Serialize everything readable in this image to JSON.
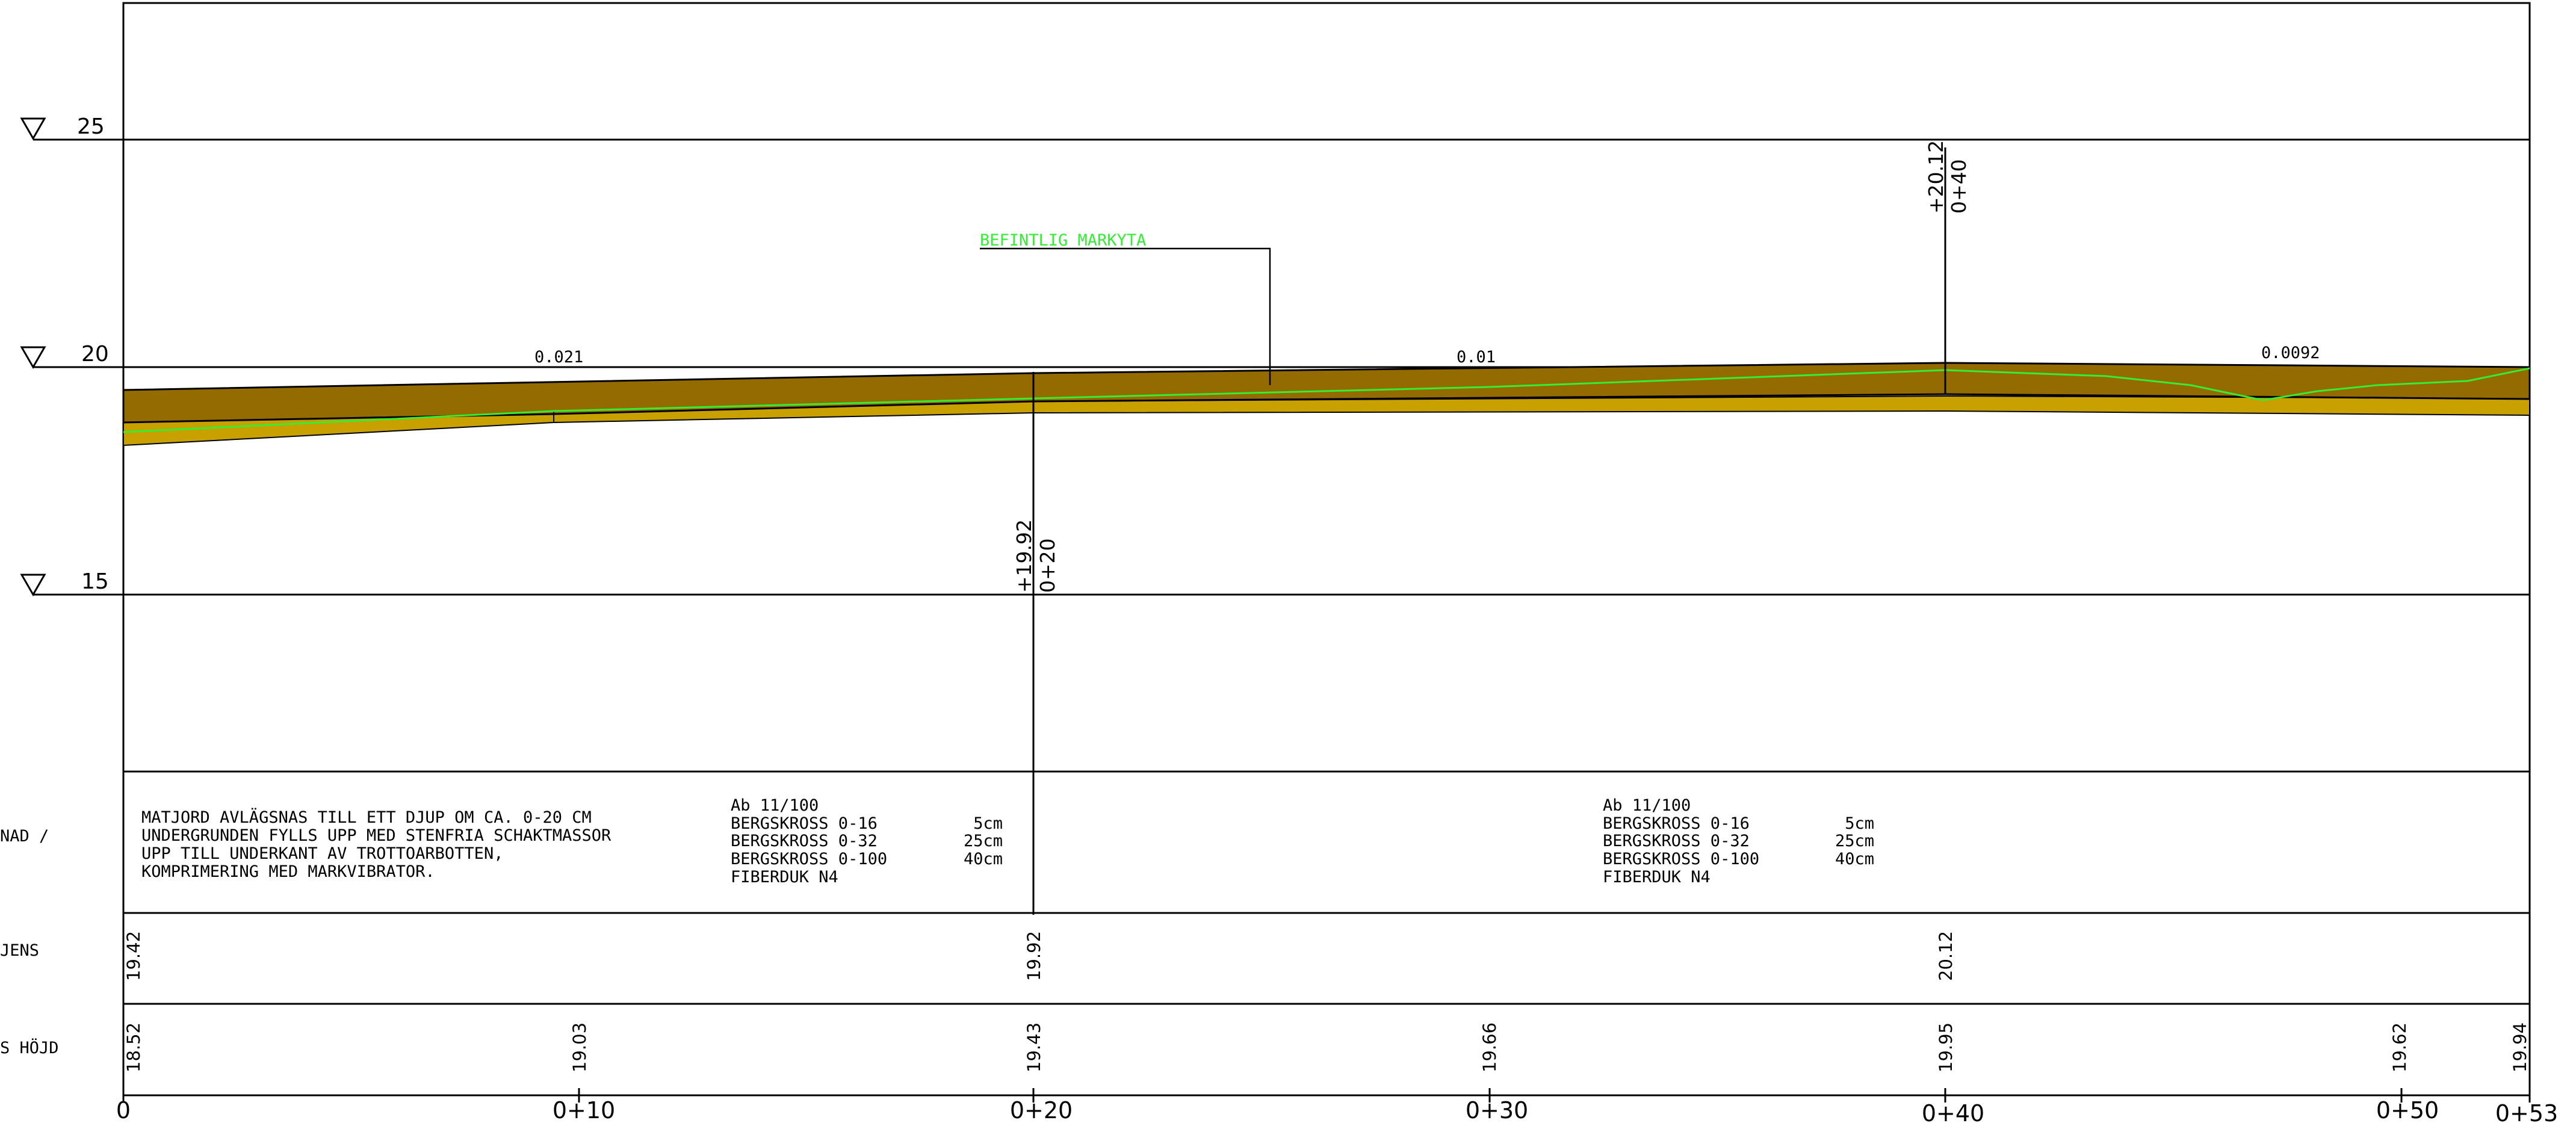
{
  "elevation_markers": [
    {
      "label": "25",
      "value": 25
    },
    {
      "label": "20",
      "value": 20
    },
    {
      "label": "15",
      "value": 15
    }
  ],
  "slopes": [
    "0.021",
    "0.01",
    "0.0092"
  ],
  "existing_ground_label": "BEFINTLIG MARKYTA",
  "callouts": [
    {
      "elev": "+19.92",
      "chain": "0+20"
    },
    {
      "elev": "+20.12",
      "chain": "0+40"
    }
  ],
  "construction_note": [
    "MATJORD AVLÄGSNAS TILL ETT DJUP OM CA. 0-20 CM",
    "UNDERGRUNDEN FYLLS UPP MED STENFRIA SCHAKTMASSOR",
    "UPP TILL UNDERKANT AV TROTTOARBOTTEN,",
    "KOMPRIMERING MED MARKVIBRATOR."
  ],
  "layer_spec_1": [
    {
      "name": "Ab 11/100",
      "depth": ""
    },
    {
      "name": "BERGSKROSS 0-16",
      "depth": "5cm"
    },
    {
      "name": "BERGSKROSS 0-32",
      "depth": "25cm"
    },
    {
      "name": "BERGSKROSS 0-100",
      "depth": "40cm"
    },
    {
      "name": "FIBERDUK N4",
      "depth": ""
    }
  ],
  "layer_spec_2": [
    {
      "name": "Ab 11/100",
      "depth": ""
    },
    {
      "name": "BERGSKROSS 0-16",
      "depth": "5cm"
    },
    {
      "name": "BERGSKROSS 0-32",
      "depth": "25cm"
    },
    {
      "name": "BERGSKROSS 0-100",
      "depth": "40cm"
    },
    {
      "name": "FIBERDUK N4",
      "depth": ""
    }
  ],
  "row_labels": [
    "NAD /",
    "JENS",
    "S HÖJD"
  ],
  "design_elevations": [
    "19.42",
    "19.92",
    "20.12"
  ],
  "existing_elevations": [
    "18.52",
    "19.03",
    "19.43",
    "19.66",
    "19.95",
    "19.62",
    "19.94"
  ],
  "chainages": [
    "0",
    "0+10",
    "0+20",
    "0+30",
    "0+40",
    "0+50",
    "0+53"
  ],
  "colors": {
    "fill_layer": "#946b00",
    "subgrade_layer": "#c8a000",
    "existing_ground": "#33ee33"
  }
}
